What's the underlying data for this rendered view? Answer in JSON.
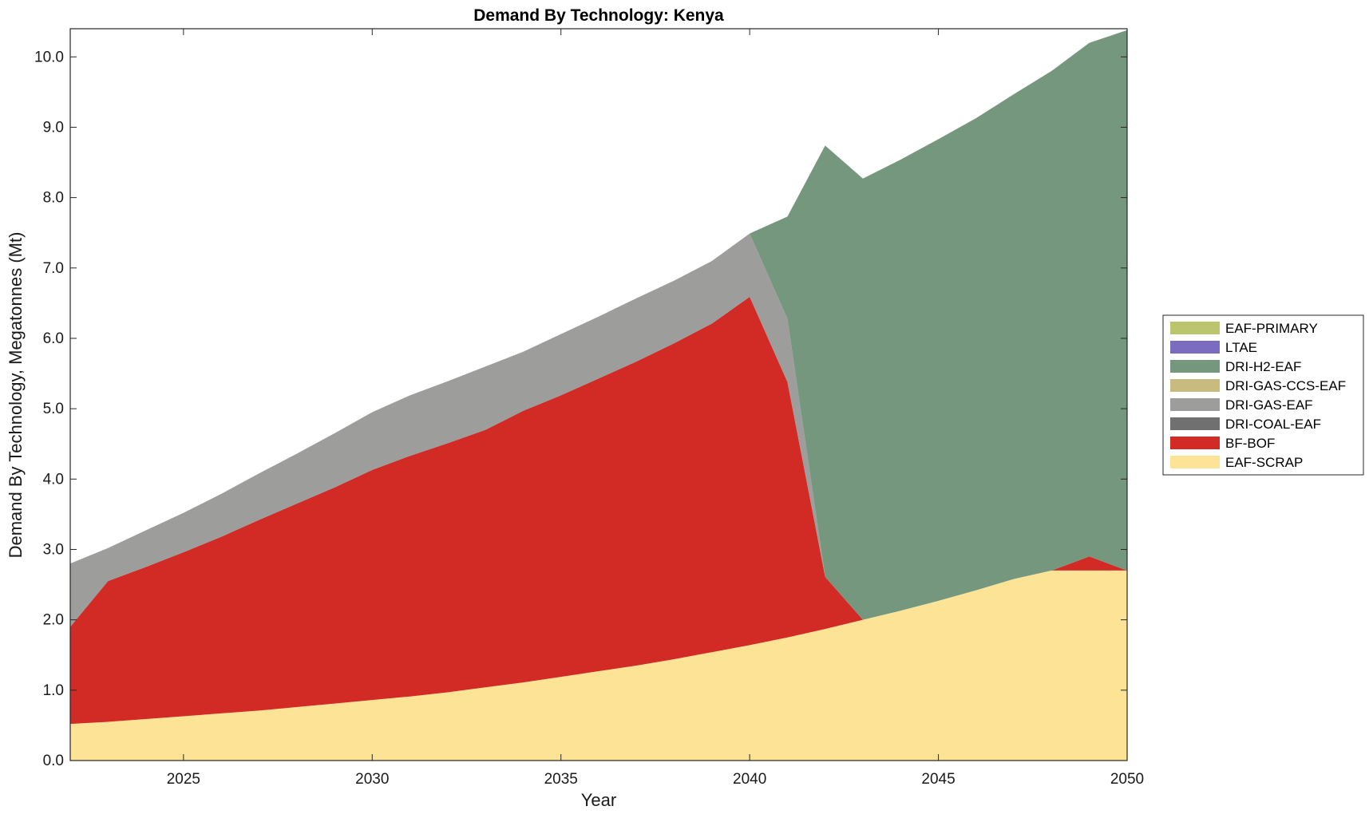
{
  "chart_data": {
    "type": "area",
    "stacked": true,
    "title": "Demand By Technology: Kenya",
    "xlabel": "Year",
    "ylabel": "Demand By Technology, Megatonnes (Mt)",
    "xlim": [
      2022,
      2050
    ],
    "ylim": [
      0,
      10.4
    ],
    "xticks": [
      2025,
      2030,
      2035,
      2040,
      2045,
      2050
    ],
    "xtick_labels": [
      "2025",
      "2030",
      "2035",
      "2040",
      "2045",
      "2050"
    ],
    "yticks": [
      0,
      1,
      2,
      3,
      4,
      5,
      6,
      7,
      8,
      9,
      10
    ],
    "ytick_labels": [
      "0.0",
      "1.0",
      "2.0",
      "3.0",
      "4.0",
      "5.0",
      "6.0",
      "7.0",
      "8.0",
      "9.0",
      "10.0"
    ],
    "grid": false,
    "legend_position": "right",
    "x": [
      2022,
      2023,
      2024,
      2025,
      2026,
      2027,
      2028,
      2029,
      2030,
      2031,
      2032,
      2033,
      2034,
      2035,
      2036,
      2037,
      2038,
      2039,
      2040,
      2041,
      2042,
      2043,
      2044,
      2045,
      2046,
      2047,
      2048,
      2049,
      2050
    ],
    "series": [
      {
        "name": "EAF-SCRAP",
        "color": "#fde395",
        "values": [
          0.52,
          0.55,
          0.59,
          0.63,
          0.67,
          0.71,
          0.76,
          0.81,
          0.86,
          0.91,
          0.97,
          1.04,
          1.11,
          1.19,
          1.27,
          1.35,
          1.44,
          1.54,
          1.64,
          1.75,
          1.87,
          2.0,
          2.13,
          2.27,
          2.42,
          2.58,
          2.7,
          2.7,
          2.7
        ]
      },
      {
        "name": "BF-BOF",
        "color": "#d22b25",
        "values": [
          1.38,
          2.0,
          2.16,
          2.33,
          2.51,
          2.71,
          2.89,
          3.07,
          3.27,
          3.42,
          3.54,
          3.66,
          3.86,
          4.0,
          4.16,
          4.32,
          4.49,
          4.67,
          4.95,
          3.63,
          0.74,
          0.0,
          0.0,
          0.0,
          0.0,
          0.0,
          0.0,
          0.2,
          0.0
        ]
      },
      {
        "name": "DRI-COAL-EAF",
        "color": "#707070",
        "values": [
          0,
          0,
          0,
          0,
          0,
          0,
          0,
          0,
          0,
          0,
          0,
          0,
          0,
          0,
          0,
          0,
          0,
          0,
          0,
          0,
          0,
          0,
          0,
          0,
          0,
          0,
          0,
          0,
          0
        ]
      },
      {
        "name": "DRI-GAS-EAF",
        "color": "#9d9d9c",
        "values": [
          0.9,
          0.47,
          0.52,
          0.56,
          0.61,
          0.66,
          0.71,
          0.77,
          0.82,
          0.86,
          0.88,
          0.9,
          0.84,
          0.87,
          0.88,
          0.9,
          0.89,
          0.89,
          0.9,
          0.9,
          0.0,
          0.0,
          0.0,
          0.0,
          0.0,
          0.0,
          0.0,
          0.0,
          0.0
        ]
      },
      {
        "name": "DRI-GAS-CCS-EAF",
        "color": "#c8bb80",
        "values": [
          0,
          0,
          0,
          0,
          0,
          0,
          0,
          0,
          0,
          0,
          0,
          0,
          0,
          0,
          0,
          0,
          0,
          0,
          0,
          0,
          0,
          0,
          0,
          0,
          0,
          0,
          0,
          0,
          0
        ]
      },
      {
        "name": "DRI-H2-EAF",
        "color": "#75977d",
        "values": [
          0,
          0,
          0,
          0,
          0,
          0,
          0,
          0,
          0,
          0,
          0,
          0,
          0,
          0,
          0,
          0,
          0,
          0,
          0,
          1.45,
          6.13,
          6.27,
          6.41,
          6.56,
          6.71,
          6.89,
          7.1,
          7.3,
          7.68
        ]
      },
      {
        "name": "LTAE",
        "color": "#7b6cc0",
        "values": [
          0,
          0,
          0,
          0,
          0,
          0,
          0,
          0,
          0,
          0,
          0,
          0,
          0,
          0,
          0,
          0,
          0,
          0,
          0,
          0,
          0,
          0,
          0,
          0,
          0,
          0,
          0,
          0,
          0
        ]
      },
      {
        "name": "EAF-PRIMARY",
        "color": "#bcc46d",
        "values": [
          0,
          0,
          0,
          0,
          0,
          0,
          0,
          0,
          0,
          0,
          0,
          0,
          0,
          0,
          0,
          0,
          0,
          0,
          0,
          0,
          0,
          0,
          0,
          0,
          0,
          0,
          0,
          0,
          0
        ]
      }
    ],
    "legend_order": [
      "EAF-PRIMARY",
      "LTAE",
      "DRI-H2-EAF",
      "DRI-GAS-CCS-EAF",
      "DRI-GAS-EAF",
      "DRI-COAL-EAF",
      "BF-BOF",
      "EAF-SCRAP"
    ]
  }
}
